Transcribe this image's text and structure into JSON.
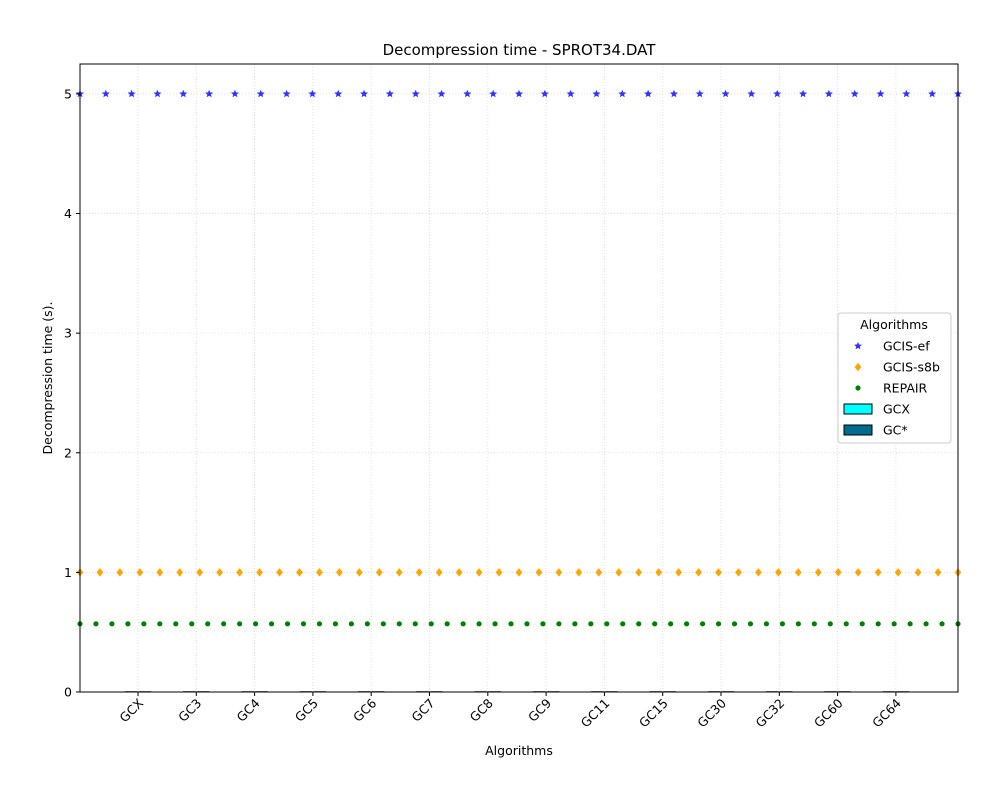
{
  "chart_data": {
    "type": "scatter",
    "title": "Decompression time -  SPROT34.DAT",
    "xlabel": "Algorithms",
    "ylabel": "Decompression time (s).",
    "categories": [
      "GCX",
      "GC3",
      "GC4",
      "GC5",
      "GC6",
      "GC7",
      "GC8",
      "GC9",
      "GC11",
      "GC15",
      "GC30",
      "GC32",
      "GC60",
      "GC64"
    ],
    "ylim": [
      0,
      5.25
    ],
    "yticks": [
      "0",
      "1",
      "2",
      "3",
      "4",
      "5"
    ],
    "grid": true,
    "legend": {
      "title": "Algorithms",
      "placement": "center-right",
      "entries": [
        "GCIS-ef",
        "GCIS-s8b",
        "REPAIR",
        "GCX",
        "GC*"
      ]
    },
    "series": [
      {
        "name": "GCIS-ef",
        "marker": "star",
        "color": "#3333ff",
        "value": 5.0,
        "points": 35
      },
      {
        "name": "GCIS-s8b",
        "marker": "diamond",
        "color": "#ffa500",
        "value": 1.0,
        "points": 45
      },
      {
        "name": "REPAIR",
        "marker": "circle",
        "color": "#008000",
        "value": 0.57,
        "points": 56
      },
      {
        "name": "GCX",
        "marker": "box",
        "color": "#00ffff",
        "values": [
          0,
          0,
          0,
          0,
          0,
          0,
          0,
          0,
          0,
          0,
          0,
          0,
          0,
          0
        ]
      },
      {
        "name": "GC*",
        "marker": "box",
        "color": "#006d8f",
        "values": [
          0,
          0,
          0,
          0,
          0,
          0,
          0,
          0,
          0,
          0,
          0,
          0,
          0,
          0
        ]
      }
    ]
  }
}
